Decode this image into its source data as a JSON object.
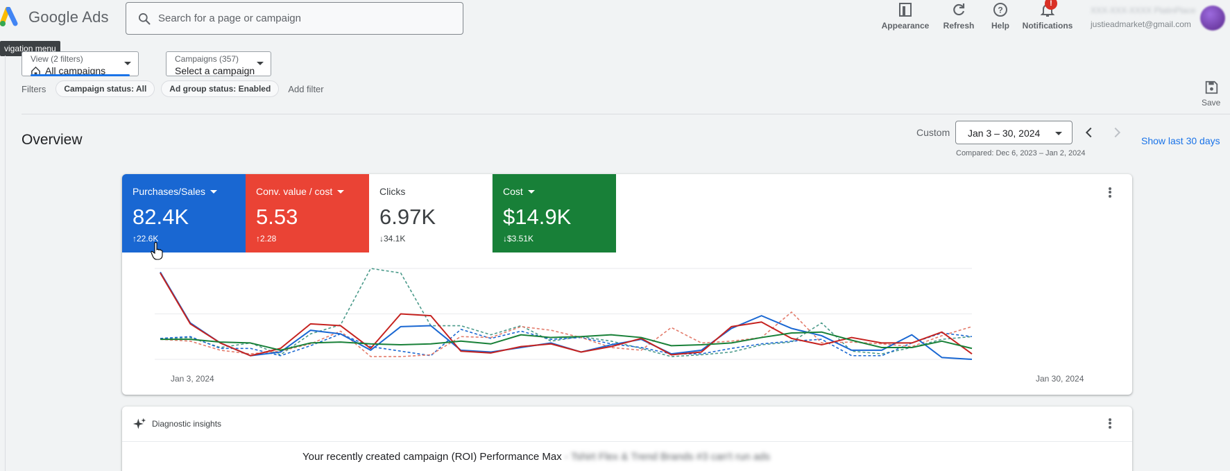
{
  "app": {
    "name": "Google Ads"
  },
  "search": {
    "placeholder": "Search for a page or campaign"
  },
  "toolbar": {
    "appearance": "Appearance",
    "refresh": "Refresh",
    "help": "Help",
    "notifications": "Notifications",
    "notifications_badge": "!"
  },
  "account": {
    "email": "justieadmarket@gmail.com",
    "name_obscured": "XXX-XXX-XXXX PlatinPlace"
  },
  "tooltip": "vigation menu",
  "view_selector": {
    "small_label": "View (2 filters)",
    "value": "All campaigns"
  },
  "campaign_selector": {
    "small_label": "Campaigns (357)",
    "value": "Select a campaign"
  },
  "filters": {
    "label": "Filters",
    "chips": [
      "Campaign status: All",
      "Ad group status: Enabled"
    ],
    "add": "Add filter"
  },
  "save_label": "Save",
  "overview": {
    "title": "Overview",
    "range_type": "Custom",
    "date_range": "Jan 3 – 30, 2024",
    "compared": "Compared: Dec 6, 2023 – Jan 2, 2024",
    "show_last": "Show last 30 days"
  },
  "metrics": [
    {
      "title": "Purchases/Sales",
      "value": "82.4K",
      "delta": "↑22.6K",
      "color": "#1967d2",
      "dropdown": true
    },
    {
      "title": "Conv. value / cost",
      "value": "5.53",
      "delta": "↑2.28",
      "color": "#ea4335",
      "dropdown": true
    },
    {
      "title": "Clicks",
      "value": "6.97K",
      "delta": "↓34.1K",
      "color": "#ffffff",
      "dropdown": false
    },
    {
      "title": "Cost",
      "value": "$14.9K",
      "delta": "↓$3.51K",
      "color": "#188038",
      "dropdown": true
    }
  ],
  "chart_data": {
    "type": "line",
    "x": [
      "Jan 3",
      "Jan 4",
      "Jan 5",
      "Jan 6",
      "Jan 7",
      "Jan 8",
      "Jan 9",
      "Jan 10",
      "Jan 11",
      "Jan 12",
      "Jan 13",
      "Jan 14",
      "Jan 15",
      "Jan 16",
      "Jan 17",
      "Jan 18",
      "Jan 19",
      "Jan 20",
      "Jan 21",
      "Jan 22",
      "Jan 23",
      "Jan 24",
      "Jan 25",
      "Jan 26",
      "Jan 27",
      "Jan 28",
      "Jan 29",
      "Jan 30"
    ],
    "x_tick_labels": [
      "Jan 3, 2024",
      "Jan 30, 2024"
    ],
    "ylim": [
      0,
      100
    ],
    "grid": true,
    "series": [
      {
        "color": "#1967d2",
        "style": "solid",
        "values": [
          96,
          40,
          18,
          4,
          8,
          32,
          28,
          10,
          36,
          37,
          10,
          8,
          13,
          18,
          8,
          16,
          22,
          6,
          10,
          34,
          48,
          34,
          26,
          10,
          10,
          27,
          2,
          0
        ]
      },
      {
        "color": "#c5221f",
        "style": "solid",
        "values": [
          95,
          39,
          18,
          4,
          12,
          39,
          37,
          12,
          50,
          48,
          9,
          7,
          14,
          17,
          8,
          14,
          23,
          5,
          8,
          36,
          41,
          23,
          16,
          24,
          18,
          18,
          30,
          6
        ]
      },
      {
        "color": "#188038",
        "style": "solid",
        "values": [
          22,
          22,
          19,
          18,
          10,
          18,
          19,
          17,
          16,
          17,
          20,
          17,
          27,
          24,
          25,
          27,
          24,
          15,
          16,
          18,
          24,
          29,
          30,
          21,
          13,
          13,
          20,
          12
        ]
      },
      {
        "color": "#4a9a8a",
        "style": "dashed",
        "values": [
          23,
          24,
          13,
          18,
          5,
          28,
          38,
          100,
          95,
          37,
          37,
          27,
          37,
          20,
          25,
          20,
          12,
          3,
          5,
          8,
          16,
          19,
          40,
          9,
          6,
          13,
          22,
          25
        ]
      },
      {
        "color": "#1967d2",
        "style": "dashed",
        "values": [
          23,
          25,
          12,
          12,
          4,
          15,
          28,
          14,
          9,
          4,
          33,
          23,
          31,
          22,
          24,
          17,
          13,
          6,
          6,
          12,
          17,
          20,
          22,
          4,
          4,
          18,
          29,
          25
        ]
      },
      {
        "color": "#e37b6b",
        "style": "dashed",
        "values": [
          22,
          20,
          10,
          6,
          9,
          17,
          31,
          3,
          3,
          5,
          25,
          24,
          36,
          32,
          24,
          13,
          10,
          35,
          18,
          20,
          24,
          52,
          18,
          19,
          17,
          14,
          26,
          36
        ]
      }
    ]
  },
  "diagnostic": {
    "title": "Diagnostic insights",
    "message": "Your recently created campaign (ROI) Performance Max",
    "message_obscured": " - Tshirt Flex & Trend Brands #3 can't run ads"
  }
}
